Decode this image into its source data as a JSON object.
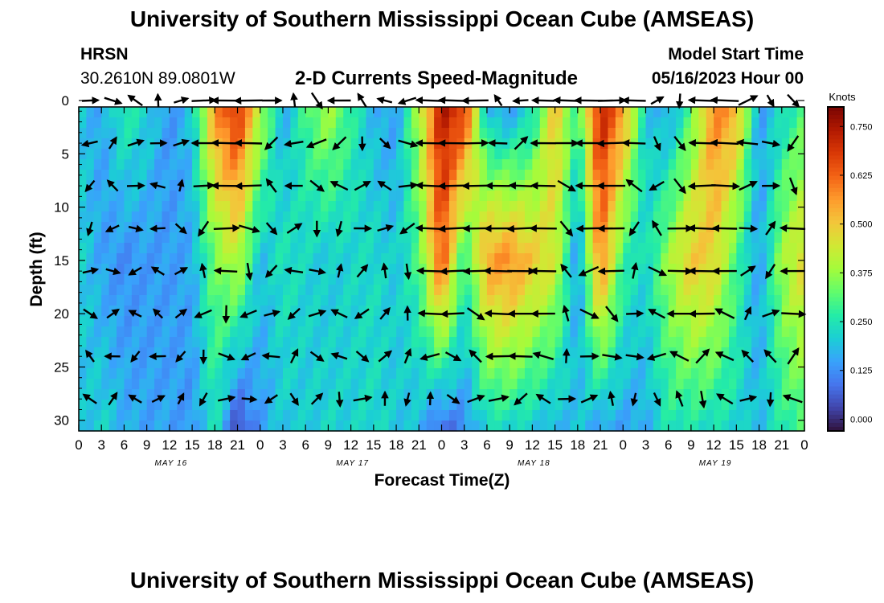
{
  "header": {
    "title": "University of Southern Mississippi Ocean Cube (AMSEAS)",
    "station": "HRSN",
    "coordinates": "30.2610N  89.0801W",
    "plot_title": "2-D Currents Speed-Magnitude",
    "model_start_label": "Model Start Time",
    "model_start_value": "05/16/2023 Hour 00"
  },
  "footer": {
    "title": "University of Southern Mississippi Ocean Cube (AMSEAS)"
  },
  "colors": {
    "colormap": [
      "#30123b",
      "#4145ab",
      "#4675ed",
      "#39a2fc",
      "#1bcfd4",
      "#24eca6",
      "#61fc6c",
      "#a4fc3b",
      "#d1e834",
      "#f3c63a",
      "#fe9b2d",
      "#f36315",
      "#d93806",
      "#b11901",
      "#7a0402"
    ],
    "arrow": "#000000"
  },
  "chart_data": {
    "type": "heatmap",
    "title": "2-D Currents Speed-Magnitude",
    "xlabel": "Forecast Time(Z)",
    "ylabel": "Depth (ft)",
    "colorbar_label": "Knots",
    "colorbar_ticks": [
      "0.000",
      "0.125",
      "0.250",
      "0.375",
      "0.500",
      "0.625",
      "0.750"
    ],
    "colorbar_range": [
      -0.03,
      0.8
    ],
    "ylim": [
      0,
      31
    ],
    "y_ticks": [
      "0",
      "5",
      "10",
      "15",
      "20",
      "25",
      "30"
    ],
    "xlim": [
      0,
      96
    ],
    "x_tick_labels": [
      "0",
      "3",
      "6",
      "9",
      "12",
      "15",
      "18",
      "21",
      "0",
      "3",
      "6",
      "9",
      "12",
      "15",
      "18",
      "21",
      "0",
      "3",
      "6",
      "9",
      "12",
      "15",
      "18",
      "21",
      "0",
      "3",
      "6",
      "9",
      "12",
      "15",
      "18",
      "21",
      "0"
    ],
    "day_labels": [
      "MAY 16",
      "MAY 17",
      "MAY 18",
      "MAY 19"
    ],
    "arrow_depths_ft": [
      0,
      4,
      8,
      12,
      16,
      20,
      24,
      28
    ],
    "speed_profile": [
      {
        "hour": 0,
        "surface": 0.2,
        "mid": 0.22,
        "bottom": 0.18
      },
      {
        "hour": 3,
        "surface": 0.15,
        "mid": 0.15,
        "bottom": 0.22
      },
      {
        "hour": 6,
        "surface": 0.28,
        "mid": 0.12,
        "bottom": 0.17
      },
      {
        "hour": 9,
        "surface": 0.22,
        "mid": 0.14,
        "bottom": 0.15
      },
      {
        "hour": 12,
        "surface": 0.13,
        "mid": 0.14,
        "bottom": 0.15
      },
      {
        "hour": 15,
        "surface": 0.2,
        "mid": 0.16,
        "bottom": 0.13
      },
      {
        "hour": 18,
        "surface": 0.58,
        "mid": 0.34,
        "bottom": 0.25
      },
      {
        "hour": 21,
        "surface": 0.72,
        "mid": 0.42,
        "bottom": 0.02
      },
      {
        "hour": 24,
        "surface": 0.42,
        "mid": 0.18,
        "bottom": 0.14
      },
      {
        "hour": 27,
        "surface": 0.15,
        "mid": 0.25,
        "bottom": 0.2
      },
      {
        "hour": 30,
        "surface": 0.3,
        "mid": 0.22,
        "bottom": 0.2
      },
      {
        "hour": 33,
        "surface": 0.4,
        "mid": 0.2,
        "bottom": 0.22
      },
      {
        "hour": 36,
        "surface": 0.28,
        "mid": 0.22,
        "bottom": 0.21
      },
      {
        "hour": 39,
        "surface": 0.17,
        "mid": 0.23,
        "bottom": 0.23
      },
      {
        "hour": 42,
        "surface": 0.14,
        "mid": 0.2,
        "bottom": 0.2
      },
      {
        "hour": 45,
        "surface": 0.4,
        "mid": 0.3,
        "bottom": 0.18
      },
      {
        "hour": 48,
        "surface": 0.75,
        "mid": 0.65,
        "bottom": 0.06
      },
      {
        "hour": 51,
        "surface": 0.7,
        "mid": 0.26,
        "bottom": 0.12
      },
      {
        "hour": 54,
        "surface": 0.16,
        "mid": 0.55,
        "bottom": 0.22
      },
      {
        "hour": 57,
        "surface": 0.12,
        "mid": 0.58,
        "bottom": 0.22
      },
      {
        "hour": 60,
        "surface": 0.22,
        "mid": 0.5,
        "bottom": 0.2
      },
      {
        "hour": 63,
        "surface": 0.52,
        "mid": 0.44,
        "bottom": 0.16
      },
      {
        "hour": 66,
        "surface": 0.28,
        "mid": 0.12,
        "bottom": 0.2
      },
      {
        "hour": 69,
        "surface": 0.74,
        "mid": 0.6,
        "bottom": 0.14
      },
      {
        "hour": 72,
        "surface": 0.58,
        "mid": 0.28,
        "bottom": 0.15
      },
      {
        "hour": 75,
        "surface": 0.2,
        "mid": 0.22,
        "bottom": 0.16
      },
      {
        "hour": 78,
        "surface": 0.14,
        "mid": 0.38,
        "bottom": 0.25
      },
      {
        "hour": 81,
        "surface": 0.3,
        "mid": 0.5,
        "bottom": 0.24
      },
      {
        "hour": 84,
        "surface": 0.6,
        "mid": 0.48,
        "bottom": 0.23
      },
      {
        "hour": 87,
        "surface": 0.55,
        "mid": 0.3,
        "bottom": 0.22
      },
      {
        "hour": 90,
        "surface": 0.14,
        "mid": 0.14,
        "bottom": 0.18
      },
      {
        "hour": 93,
        "surface": 0.22,
        "mid": 0.38,
        "bottom": 0.26
      },
      {
        "hour": 96,
        "surface": 0.3,
        "mid": 0.48,
        "bottom": 0.3
      }
    ]
  }
}
